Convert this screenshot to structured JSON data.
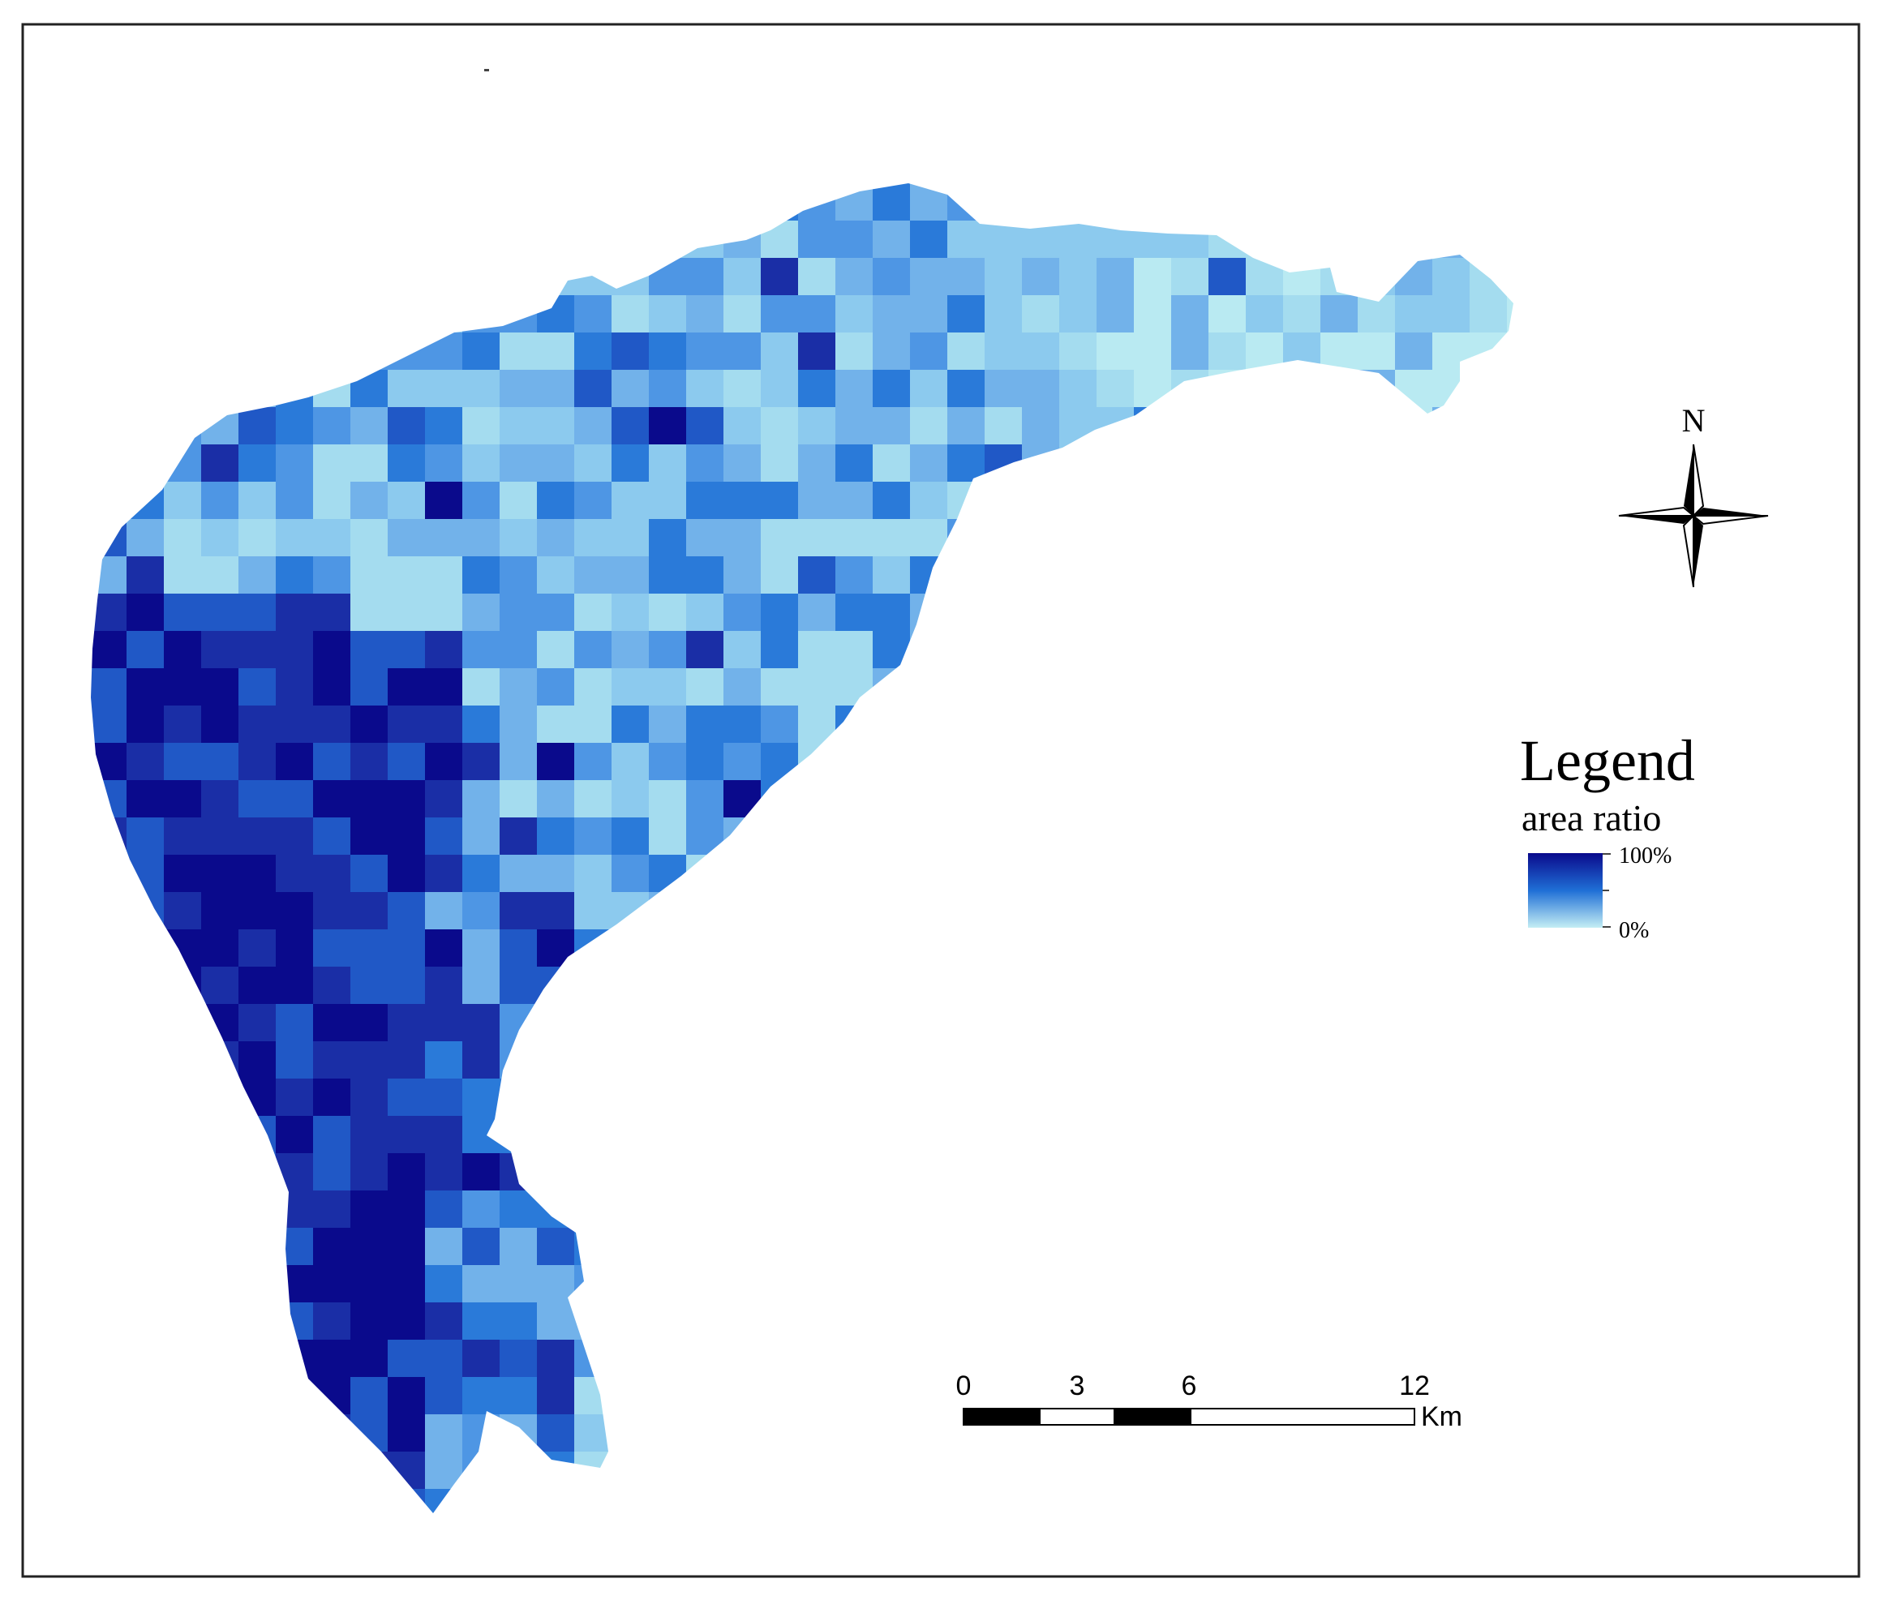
{
  "compass": {
    "north_label": "N"
  },
  "legend": {
    "title": "Legend",
    "field": "area ratio",
    "max_label": "100%",
    "min_label": "0%",
    "colors": {
      "high": "#0a0a8c",
      "mid": "#1f6fd6",
      "low": "#c4eef4"
    }
  },
  "scale_bar": {
    "ticks": [
      "0",
      "3",
      "6",
      "12"
    ],
    "unit": "Km"
  },
  "grid": {
    "palette": [
      "#b9eaf2",
      "#a4dcef",
      "#8ccaee",
      "#72b2ea",
      "#4e96e4",
      "#2a7ad9",
      "#2058c6",
      "#1a2ea6",
      "#0a0a8c"
    ]
  }
}
